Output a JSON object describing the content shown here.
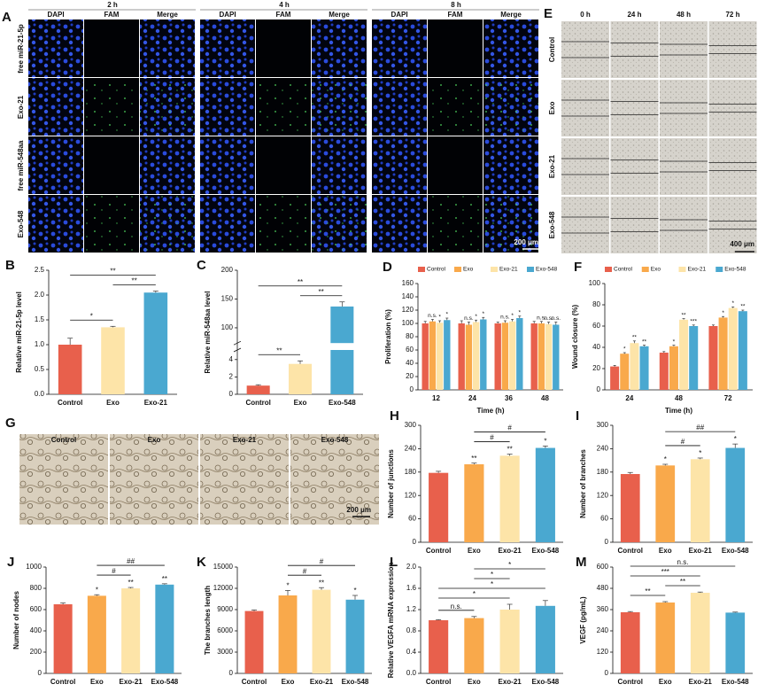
{
  "image_panels": {
    "A": {
      "label": "A",
      "times": [
        "2 h",
        "4 h",
        "8 h"
      ],
      "channels": [
        "DAPI",
        "FAM",
        "Merge"
      ],
      "rows": [
        "free miR-21-5p",
        "Exo-21",
        "free miR-548aa",
        "Exo-548"
      ],
      "scale_bar": "200 μm"
    },
    "E": {
      "label": "E",
      "times": [
        "0 h",
        "24 h",
        "48 h",
        "72 h"
      ],
      "rows": [
        "Control",
        "Exo",
        "Exo-21",
        "Exo-548"
      ],
      "scale_bar": "400 μm"
    },
    "G": {
      "label": "G",
      "columns": [
        "Control",
        "Exo",
        "Exo-21",
        "Exo-548"
      ],
      "scale_bar": "200 μm"
    }
  },
  "chart_data": [
    {
      "type": "bar",
      "label": "B",
      "ylabel": "Relative miR-21-5p level",
      "categories": [
        "Control",
        "Exo",
        "Exo-21"
      ],
      "values": [
        1.0,
        1.35,
        2.05
      ],
      "errors": [
        0.13,
        0.02,
        0.03
      ],
      "colors": [
        "#e8604c",
        "#fde4a8",
        "#4aa8d0"
      ],
      "ylim": [
        0,
        2.5
      ],
      "yticks": [
        {
          "value": 0,
          "label": "0.0"
        },
        0.5,
        {
          "value": 1,
          "label": "1.0"
        },
        1.5,
        {
          "value": 2,
          "label": "2.0"
        },
        2.5
      ],
      "brackets": [
        {
          "between": [
            0,
            1
          ],
          "text": "*"
        },
        {
          "between": [
            1,
            2
          ],
          "text": "**"
        },
        {
          "between": [
            0,
            2
          ],
          "text": "**"
        }
      ]
    },
    {
      "type": "bar",
      "label": "C",
      "ylabel": "Relative miR-548aa level",
      "categories": [
        "Control",
        "Exo",
        "Exo-548"
      ],
      "values": [
        1.0,
        3.5,
        137
      ],
      "errors": [
        0.1,
        0.35,
        8
      ],
      "colors": [
        "#e8604c",
        "#fde4a8",
        "#4aa8d0"
      ],
      "ylim": [
        0,
        200
      ],
      "ybreak": [
        5,
        75
      ],
      "yticks": [
        0,
        2,
        4,
        100,
        150,
        200
      ],
      "brackets": [
        {
          "between": [
            0,
            1
          ],
          "text": "**"
        },
        {
          "between": [
            1,
            2
          ],
          "text": "**"
        },
        {
          "between": [
            0,
            2
          ],
          "text": "**"
        }
      ]
    },
    {
      "type": "grouped_bar",
      "label": "D",
      "xlabel": "Time (h)",
      "ylabel": "Proliferation (%)",
      "categories": [
        "12",
        "24",
        "36",
        "48"
      ],
      "legend": "top",
      "ylim": [
        0,
        160
      ],
      "yticks": [
        0,
        20,
        40,
        60,
        80,
        100,
        120,
        140,
        160
      ],
      "series": [
        {
          "name": "Control",
          "color": "#e8604c",
          "values": [
            100,
            100,
            100,
            100
          ],
          "errors": [
            3,
            4,
            2,
            3
          ]
        },
        {
          "name": "Exo",
          "color": "#f9a94b",
          "values": [
            103,
            98,
            101,
            100
          ],
          "errors": [
            3,
            4,
            3,
            3
          ],
          "bar_labels": [
            "n.s.",
            "n.s.",
            "n.s.",
            "n.s."
          ]
        },
        {
          "name": "Exo-21",
          "color": "#fde4a8",
          "values": [
            101,
            102,
            103,
            99
          ],
          "errors": [
            3,
            3,
            3,
            3
          ],
          "bar_labels": [
            "*",
            "*",
            "*",
            "n.s."
          ]
        },
        {
          "name": "Exo-548",
          "color": "#4aa8d0",
          "values": [
            105,
            106,
            108,
            98
          ],
          "errors": [
            3,
            3,
            3,
            4
          ],
          "bar_labels": [
            "*",
            "*",
            "*",
            "n.s."
          ]
        }
      ]
    },
    {
      "type": "grouped_bar",
      "label": "F",
      "xlabel": "Time (h)",
      "ylabel": "Wound closure (%)",
      "categories": [
        "24",
        "48",
        "72"
      ],
      "legend": "top",
      "ylim": [
        0,
        100
      ],
      "yticks": [
        0,
        20,
        40,
        60,
        80,
        100
      ],
      "series": [
        {
          "name": "Control",
          "color": "#e8604c",
          "values": [
            22,
            35,
            60
          ],
          "errors": [
            1,
            1,
            1
          ]
        },
        {
          "name": "Exo",
          "color": "#f9a94b",
          "values": [
            34,
            41,
            68
          ],
          "errors": [
            1,
            1,
            1
          ],
          "bar_labels": [
            "*",
            "*",
            "*"
          ]
        },
        {
          "name": "Exo-21",
          "color": "#fde4a8",
          "values": [
            44,
            66,
            77
          ],
          "errors": [
            2,
            1,
            1
          ],
          "bar_labels": [
            "**",
            "**",
            "*"
          ]
        },
        {
          "name": "Exo-548",
          "color": "#4aa8d0",
          "values": [
            41,
            60,
            74
          ],
          "errors": [
            1,
            1,
            1
          ],
          "bar_labels": [
            "**",
            "***",
            "**"
          ]
        }
      ]
    },
    {
      "type": "bar",
      "label": "H",
      "ylabel": "Number of junctions",
      "categories": [
        "Control",
        "Exo",
        "Exo-21",
        "Exo-548"
      ],
      "values": [
        178,
        200,
        222,
        242
      ],
      "errors": [
        4,
        3,
        4,
        5
      ],
      "colors": [
        "#e8604c",
        "#f9a94b",
        "#fde4a8",
        "#4aa8d0"
      ],
      "bar_labels": [
        null,
        "**",
        "**",
        "*"
      ],
      "ylim": [
        0,
        300
      ],
      "yticks": [
        0,
        60,
        120,
        180,
        240,
        300
      ],
      "brackets": [
        {
          "between": [
            1,
            2
          ],
          "text": "#"
        },
        {
          "between": [
            1,
            3
          ],
          "text": "#"
        }
      ]
    },
    {
      "type": "bar",
      "label": "I",
      "ylabel": "Number of branches",
      "categories": [
        "Control",
        "Exo",
        "Exo-21",
        "Exo-548"
      ],
      "values": [
        175,
        197,
        213,
        242
      ],
      "errors": [
        4,
        3,
        3,
        10
      ],
      "colors": [
        "#e8604c",
        "#f9a94b",
        "#fde4a8",
        "#4aa8d0"
      ],
      "bar_labels": [
        null,
        "*",
        "*",
        "*"
      ],
      "ylim": [
        0,
        300
      ],
      "yticks": [
        0,
        60,
        120,
        180,
        240,
        300
      ],
      "brackets": [
        {
          "between": [
            1,
            2
          ],
          "text": "#"
        },
        {
          "between": [
            1,
            3
          ],
          "text": "##"
        }
      ]
    },
    {
      "type": "bar",
      "label": "J",
      "ylabel": "Number of nodes",
      "categories": [
        "Control",
        "Exo",
        "Exo-21",
        "Exo-548"
      ],
      "values": [
        650,
        730,
        800,
        835
      ],
      "errors": [
        12,
        10,
        8,
        8
      ],
      "colors": [
        "#e8604c",
        "#f9a94b",
        "#fde4a8",
        "#4aa8d0"
      ],
      "bar_labels": [
        null,
        "*",
        "**",
        "**"
      ],
      "ylim": [
        0,
        1000
      ],
      "yticks": [
        0,
        200,
        400,
        600,
        800,
        1000
      ],
      "brackets": [
        {
          "between": [
            1,
            2
          ],
          "text": "#"
        },
        {
          "between": [
            1,
            3
          ],
          "text": "##"
        }
      ]
    },
    {
      "type": "bar",
      "label": "K",
      "ylabel": "The branches length",
      "categories": [
        "Control",
        "Exo",
        "Exo-21",
        "Exo-548"
      ],
      "values": [
        8800,
        11000,
        11800,
        10400
      ],
      "errors": [
        150,
        700,
        300,
        600
      ],
      "colors": [
        "#e8604c",
        "#f9a94b",
        "#fde4a8",
        "#4aa8d0"
      ],
      "bar_labels": [
        null,
        "*",
        "**",
        "*"
      ],
      "ylim": [
        0,
        15000
      ],
      "yticks": [
        0,
        3000,
        6000,
        9000,
        12000,
        15000
      ],
      "brackets": [
        {
          "between": [
            1,
            2
          ],
          "text": "#"
        },
        {
          "between": [
            1,
            3
          ],
          "text": "#"
        }
      ]
    },
    {
      "type": "bar",
      "label": "L",
      "ylabel": "Relative VEGFA mRNA expression",
      "categories": [
        "Control",
        "Exo",
        "Exo-21",
        "Exo-548"
      ],
      "values": [
        1.0,
        1.04,
        1.2,
        1.27
      ],
      "errors": [
        0.01,
        0.03,
        0.1,
        0.1
      ],
      "colors": [
        "#e8604c",
        "#f9a94b",
        "#fde4a8",
        "#4aa8d0"
      ],
      "ylim": [
        0,
        2
      ],
      "yticks": [
        {
          "value": 0,
          "label": "0.0"
        },
        0.4,
        0.8,
        1.2,
        1.6,
        {
          "value": 2,
          "label": "2.0"
        }
      ],
      "brackets": [
        {
          "between": [
            0,
            1
          ],
          "text": "n.s."
        },
        {
          "between": [
            0,
            2
          ],
          "text": "*"
        },
        {
          "between": [
            0,
            3
          ],
          "text": "*"
        },
        {
          "between": [
            1,
            2
          ],
          "text": "*"
        },
        {
          "between": [
            1,
            3
          ],
          "text": "*"
        }
      ]
    },
    {
      "type": "bar",
      "label": "M",
      "ylabel": "VEGF (pg/mL)",
      "categories": [
        "Control",
        "Exo",
        "Exo-21",
        "Exo-548"
      ],
      "values": [
        345,
        400,
        455,
        343
      ],
      "errors": [
        4,
        5,
        4,
        3
      ],
      "colors": [
        "#e8604c",
        "#f9a94b",
        "#fde4a8",
        "#4aa8d0"
      ],
      "ylim": [
        0,
        600
      ],
      "yticks": [
        0,
        120,
        240,
        360,
        480,
        600
      ],
      "brackets": [
        {
          "between": [
            0,
            1
          ],
          "text": "**"
        },
        {
          "between": [
            1,
            2
          ],
          "text": "**"
        },
        {
          "between": [
            0,
            2
          ],
          "text": "***"
        },
        {
          "between": [
            0,
            3
          ],
          "text": "n.s."
        }
      ]
    }
  ]
}
